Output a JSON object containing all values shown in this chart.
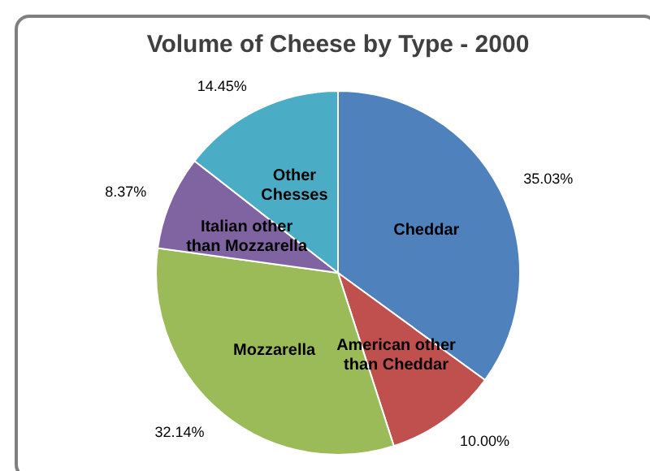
{
  "chart_data": {
    "type": "pie",
    "title": "Volume of Cheese by Type - 2000",
    "categories": [
      "Cheddar",
      "American other than Cheddar",
      "Mozzarella",
      "Italian other than Mozzarella",
      "Other Chesses"
    ],
    "values": [
      35.03,
      10.0,
      32.14,
      8.37,
      14.45
    ],
    "colors": [
      "#4f81bd",
      "#c0504d",
      "#9bbb59",
      "#8064a2",
      "#4bacc6"
    ],
    "value_labels": [
      "35.03%",
      "10.00%",
      "32.14%",
      "8.37%",
      "14.45%"
    ]
  }
}
